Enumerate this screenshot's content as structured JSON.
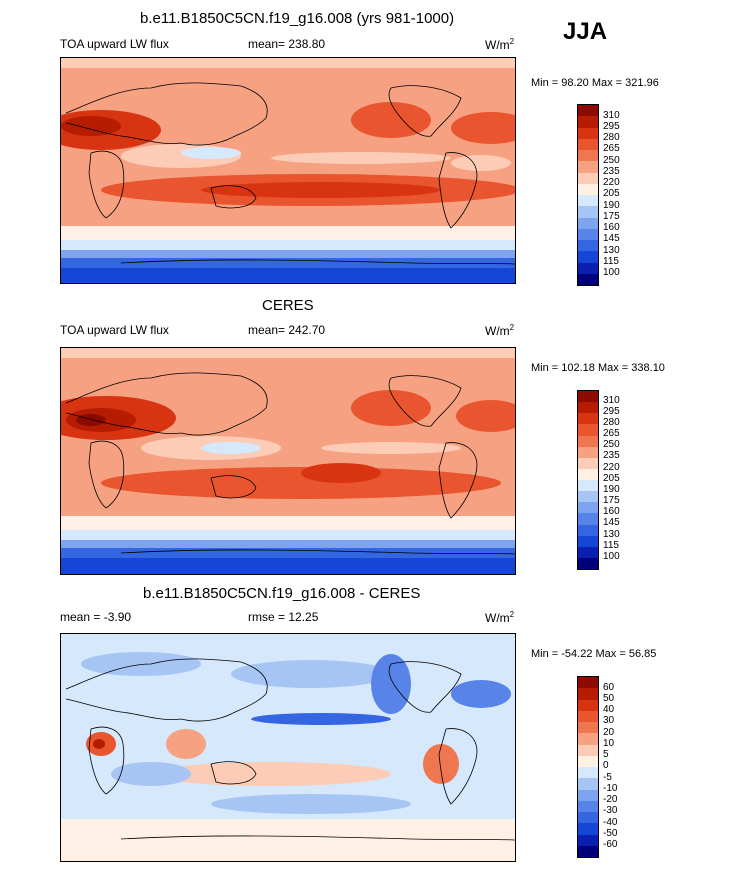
{
  "season": "JJA",
  "panels": [
    {
      "title": "b.e11.B1850C5CN.f19_g16.008 (yrs 981-1000)",
      "left_label": "TOA upward LW flux",
      "center_label": "mean= 238.80",
      "units_base": "W/m",
      "units_exp": "2",
      "minmax": "Min =  98.20 Max = 321.96"
    },
    {
      "title": "CERES",
      "left_label": "TOA upward LW flux",
      "center_label": "mean= 242.70",
      "units_base": "W/m",
      "units_exp": "2",
      "minmax": "Min = 102.18 Max = 338.10"
    },
    {
      "title": "b.e11.B1850C5CN.f19_g16.008 - CERES",
      "left_label": "mean =  -3.90",
      "center_label": "rmse =  12.25",
      "units_base": "W/m",
      "units_exp": "2",
      "minmax": "Min = -54.22 Max =  56.85"
    }
  ],
  "colorbars": {
    "absolute": {
      "levels": [
        "310",
        "295",
        "280",
        "265",
        "250",
        "235",
        "220",
        "205",
        "190",
        "175",
        "160",
        "145",
        "130",
        "115",
        "100"
      ],
      "colors": [
        "#8c0a00",
        "#b51c00",
        "#d93412",
        "#e8552e",
        "#f07650",
        "#f7a183",
        "#fcccb6",
        "#fff0e6",
        "#d6e8fb",
        "#a7c5f4",
        "#7ea4ef",
        "#5884ea",
        "#3466e2",
        "#1646d6",
        "#0a1fb0",
        "#00007a"
      ]
    },
    "difference": {
      "levels": [
        "60",
        "50",
        "40",
        "30",
        "20",
        "10",
        "5",
        "0",
        "-5",
        "-10",
        "-20",
        "-30",
        "-40",
        "-50",
        "-60"
      ],
      "colors": [
        "#8c0a00",
        "#b51c00",
        "#d93412",
        "#e8552e",
        "#f07650",
        "#f7a183",
        "#fcccb6",
        "#fff0e6",
        "#d6e8fb",
        "#a7c5f4",
        "#7ea4ef",
        "#5884ea",
        "#3466e2",
        "#1646d6",
        "#0a1fb0",
        "#00007a"
      ]
    }
  }
}
